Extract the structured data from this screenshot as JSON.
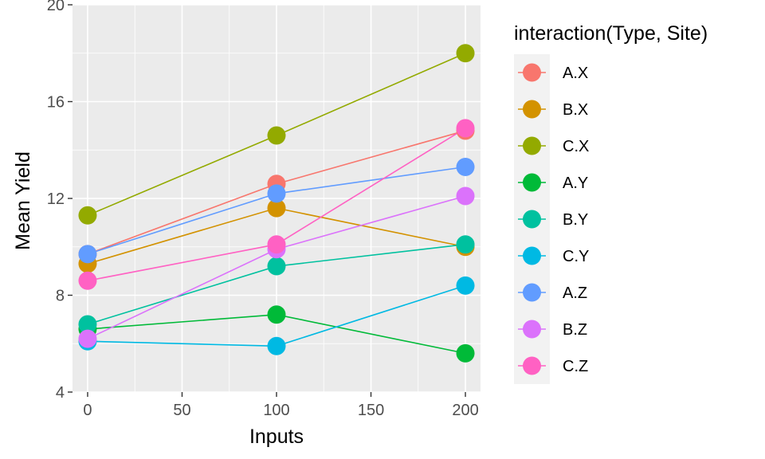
{
  "chart_data": {
    "type": "line",
    "xlabel": "Inputs",
    "ylabel": "Mean Yield",
    "xlim": [
      -8,
      208
    ],
    "ylim": [
      4,
      20
    ],
    "x_ticks": [
      0,
      50,
      100,
      150,
      200
    ],
    "y_ticks": [
      4,
      8,
      12,
      16,
      20
    ],
    "x_tick_labels": [
      "0",
      "50",
      "100",
      "150",
      "200"
    ],
    "y_tick_labels": [
      "4",
      "8",
      "12",
      "16",
      "20"
    ],
    "grid": true,
    "legend": {
      "title": "interaction(Type, Site)",
      "placement": "right"
    },
    "x": [
      0,
      100,
      200
    ],
    "series": [
      {
        "name": "A.X",
        "color": "#F8766D",
        "values": [
          9.7,
          12.6,
          14.8
        ]
      },
      {
        "name": "B.X",
        "color": "#D39200",
        "values": [
          9.3,
          11.6,
          10.0
        ]
      },
      {
        "name": "C.X",
        "color": "#93AA00",
        "values": [
          11.3,
          14.6,
          18.0
        ]
      },
      {
        "name": "A.Y",
        "color": "#00BA38",
        "values": [
          6.6,
          7.2,
          5.6
        ]
      },
      {
        "name": "B.Y",
        "color": "#00C19F",
        "values": [
          6.8,
          9.2,
          10.1
        ]
      },
      {
        "name": "C.Y",
        "color": "#00B9E3",
        "values": [
          6.1,
          5.9,
          8.4
        ]
      },
      {
        "name": "A.Z",
        "color": "#619CFF",
        "values": [
          9.7,
          12.2,
          13.3
        ]
      },
      {
        "name": "B.Z",
        "color": "#DB72FB",
        "values": [
          6.2,
          9.9,
          12.1
        ]
      },
      {
        "name": "C.Z",
        "color": "#FF61C3",
        "values": [
          8.6,
          10.1,
          14.9
        ]
      }
    ]
  }
}
